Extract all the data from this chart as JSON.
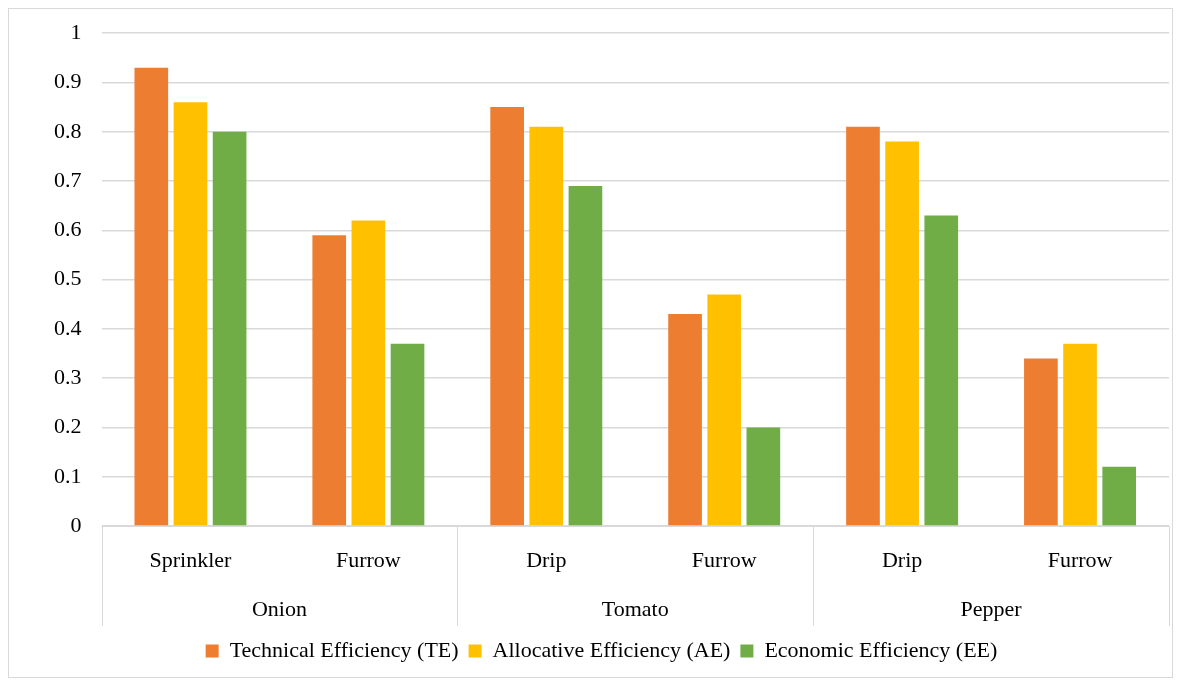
{
  "chart_data": {
    "type": "bar",
    "categories": [
      "Sprinkler",
      "Furrow",
      "Drip",
      "Furrow",
      "Drip",
      "Furrow"
    ],
    "annotations": [
      "Onion",
      "Tomato",
      "Pepper"
    ],
    "series": [
      {
        "name": "Technical Efficiency (TE)",
        "color": "#ed7d31",
        "values": [
          0.93,
          0.59,
          0.85,
          0.43,
          0.81,
          0.34
        ]
      },
      {
        "name": "Allocative Efficiency (AE)",
        "color": "#ffc000",
        "values": [
          0.86,
          0.62,
          0.81,
          0.47,
          0.78,
          0.37
        ]
      },
      {
        "name": "Economic Efficiency (EE)",
        "color": "#70ad47",
        "values": [
          0.8,
          0.37,
          0.69,
          0.2,
          0.63,
          0.12
        ]
      }
    ],
    "ylim": [
      0,
      1
    ],
    "yticks": [
      0,
      0.1,
      0.2,
      0.3,
      0.4,
      0.5,
      0.6,
      0.7,
      0.8,
      0.9,
      1
    ],
    "grid": "y",
    "legend": "bottom"
  }
}
